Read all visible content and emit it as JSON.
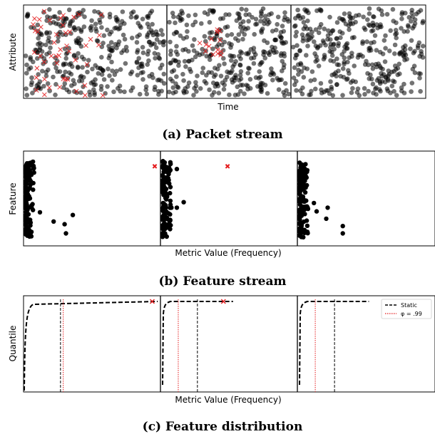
{
  "panels": {
    "a": {
      "caption": "(a) Packet stream",
      "xlabel": "Time",
      "ylabel": "Attribute"
    },
    "b": {
      "caption": "(b) Feature stream",
      "xlabel": "Metric Value (Frequency)",
      "ylabel": "Feature"
    },
    "c": {
      "caption": "(c) Feature distribution",
      "xlabel": "Metric Value (Frequency)",
      "ylabel": "Quantile",
      "legend": {
        "static_label": "Static",
        "phi_label": "φ = .99"
      }
    }
  },
  "colors": {
    "point": "#000000",
    "anomaly": "#e41a1c",
    "phi_line": "#e41a1c",
    "static_line": "#000000"
  },
  "chart_data": [
    {
      "type": "scatter",
      "xlabel": "Time",
      "ylabel": "Attribute",
      "window_dividers": 2,
      "windows": [
        {
          "normal_count": 360,
          "anomaly_count": 48,
          "anomaly_region": "left"
        },
        {
          "normal_count": 330,
          "anomaly_count": 14,
          "anomaly_region": "right"
        },
        {
          "normal_count": 360,
          "anomaly_count": 0
        }
      ],
      "grid": false
    },
    {
      "type": "scatter",
      "xlabel": "Metric Value (Frequency)",
      "ylabel": "Feature",
      "windows": [
        {
          "cluster_count": 120,
          "outliers": [
            [
              0.12,
              0.35
            ],
            [
              0.22,
              0.25
            ],
            [
              0.3,
              0.22
            ],
            [
              0.31,
              0.12
            ],
            [
              0.36,
              0.32
            ]
          ],
          "anomalies": []
        },
        {
          "cluster_count": 120,
          "outliers": [
            [
              0.08,
              0.4
            ],
            [
              0.12,
              0.4
            ],
            [
              0.17,
              0.46
            ],
            [
              0.12,
              0.82
            ]
          ],
          "anomalies": [
            [
              0.96,
              0.85
            ],
            [
              0.49,
              0.85
            ]
          ]
        },
        {
          "cluster_count": 120,
          "outliers": [
            [
              0.12,
              0.45
            ],
            [
              0.14,
              0.36
            ],
            [
              0.21,
              0.28
            ],
            [
              0.22,
              0.4
            ],
            [
              0.33,
              0.12
            ],
            [
              0.33,
              0.2
            ]
          ],
          "anomalies": []
        }
      ],
      "grid": false
    },
    {
      "type": "line",
      "xlabel": "Metric Value (Frequency)",
      "ylabel": "Quantile",
      "series": [
        {
          "name": "Static",
          "style": "dashed",
          "color": "#000000"
        },
        {
          "name": "φ = .99",
          "style": "dotted",
          "color": "#e41a1c"
        }
      ],
      "windows": [
        {
          "cdf_end_x": 0.98,
          "static_x": 0.27,
          "phi_x": 0.29,
          "anomaly_x": 0.94
        },
        {
          "cdf_end_x": 0.53,
          "static_x": 0.27,
          "phi_x": 0.13,
          "anomaly_x": 0.46
        },
        {
          "cdf_end_x": 0.52,
          "static_x": 0.27,
          "phi_x": 0.13
        }
      ],
      "legend_position": "top-right",
      "grid": false
    }
  ]
}
